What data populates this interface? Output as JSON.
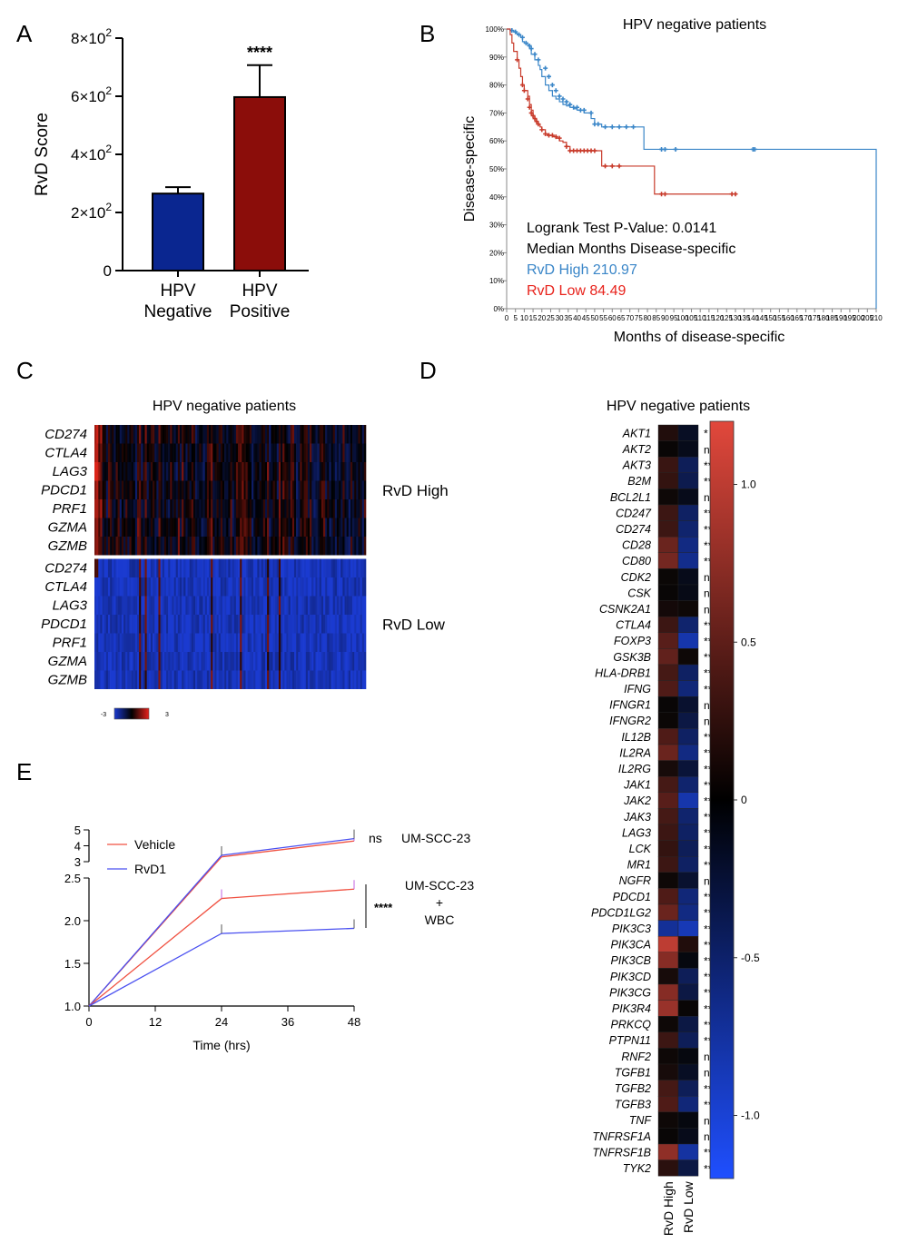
{
  "panel_labels": [
    "A",
    "B",
    "C",
    "D",
    "E"
  ],
  "chart_data": [
    {
      "id": "A",
      "type": "bar",
      "categories": [
        [
          "HPV",
          "Negative"
        ],
        [
          "HPV",
          "Positive"
        ]
      ],
      "values": [
        265,
        597
      ],
      "errors": [
        22,
        110
      ],
      "colors": [
        "#0a2690",
        "#8b0d0a"
      ],
      "ylabel": "RvD Score",
      "ylim": [
        0,
        800
      ],
      "yticks": [
        {
          "v": 0,
          "t": "0"
        },
        {
          "v": 200,
          "t": "2×10",
          "e": "2"
        },
        {
          "v": 400,
          "t": "4×10",
          "e": "2"
        },
        {
          "v": 600,
          "t": "6×10",
          "e": "2"
        },
        {
          "v": 800,
          "t": "8×10",
          "e": "2"
        }
      ],
      "annotation": "****"
    },
    {
      "id": "B",
      "type": "line",
      "title": "HPV negative patients",
      "xlabel": "Months of disease-specific",
      "ylabel": "Disease-specific",
      "xlim": [
        0,
        210
      ],
      "ylim": [
        0,
        100
      ],
      "xticks": [
        0,
        5,
        10,
        15,
        20,
        25,
        30,
        35,
        40,
        45,
        50,
        55,
        60,
        65,
        70,
        75,
        80,
        85,
        90,
        95,
        100,
        105,
        110,
        115,
        120,
        125,
        130,
        135,
        140,
        145,
        150,
        155,
        160,
        165,
        170,
        175,
        180,
        185,
        190,
        195,
        200,
        205,
        210
      ],
      "yticks": [
        {
          "v": 0,
          "t": "0%"
        },
        {
          "v": 10,
          "t": "10%"
        },
        {
          "v": 20,
          "t": "20%"
        },
        {
          "v": 30,
          "t": "30%"
        },
        {
          "v": 40,
          "t": "40%"
        },
        {
          "v": 50,
          "t": "50%"
        },
        {
          "v": 60,
          "t": "60%"
        },
        {
          "v": 70,
          "t": "70%"
        },
        {
          "v": 80,
          "t": "80%"
        },
        {
          "v": 90,
          "t": "90%"
        },
        {
          "v": 100,
          "t": "100%"
        }
      ],
      "series": [
        {
          "color": "#3a86c8",
          "x": [
            0,
            2,
            4,
            5,
            6,
            8,
            9,
            10,
            12,
            13,
            14,
            16,
            18,
            19,
            20,
            22,
            24,
            26,
            28,
            30,
            32,
            34,
            36,
            38,
            40,
            44,
            48,
            50,
            54,
            58,
            62,
            70,
            76,
            78,
            210,
            210
          ],
          "y": [
            100,
            99.5,
            99,
            98.5,
            98,
            97,
            95.5,
            95,
            94,
            93,
            91,
            89,
            87,
            85.5,
            83,
            80,
            78,
            76,
            75,
            74,
            73,
            72.5,
            72,
            71.5,
            71,
            70,
            68,
            66,
            65,
            65,
            65,
            65,
            65,
            57,
            57,
            0
          ],
          "censors": [
            [
              3,
              99.5
            ],
            [
              5,
              99
            ],
            [
              7,
              98
            ],
            [
              9,
              97
            ],
            [
              11,
              95
            ],
            [
              13,
              94
            ],
            [
              14,
              93
            ],
            [
              16,
              91
            ],
            [
              18,
              89
            ],
            [
              22,
              86
            ],
            [
              24,
              83
            ],
            [
              26,
              80
            ],
            [
              28,
              78
            ],
            [
              30,
              76
            ],
            [
              32,
              75
            ],
            [
              34,
              74
            ],
            [
              36,
              73
            ],
            [
              38,
              72
            ],
            [
              40,
              72
            ],
            [
              42,
              71
            ],
            [
              44,
              71
            ],
            [
              48,
              70
            ],
            [
              50,
              66
            ],
            [
              52,
              66
            ],
            [
              56,
              65
            ],
            [
              60,
              65
            ],
            [
              64,
              65
            ],
            [
              68,
              65
            ],
            [
              72,
              65
            ],
            [
              88,
              57
            ],
            [
              90,
              57
            ],
            [
              96,
              57
            ],
            [
              140,
              57
            ],
            [
              141,
              57
            ]
          ]
        },
        {
          "color": "#c83a2a",
          "x": [
            0,
            2,
            3,
            4,
            6,
            7,
            8,
            9,
            10,
            12,
            13,
            14,
            15,
            16,
            17,
            18,
            19,
            20,
            22,
            24,
            26,
            28,
            30,
            32,
            34,
            36,
            40,
            44,
            54,
            58,
            84,
            130
          ],
          "y": [
            100,
            98,
            95,
            92,
            89,
            86,
            83,
            80,
            78,
            76,
            73,
            71,
            69,
            68,
            67,
            66,
            65,
            64,
            62.5,
            62,
            61.5,
            61,
            60,
            59.5,
            58,
            56.5,
            56.5,
            56.5,
            51,
            51,
            41,
            41
          ],
          "censors": [
            [
              6,
              89
            ],
            [
              9,
              80
            ],
            [
              10,
              78
            ],
            [
              12,
              75
            ],
            [
              13,
              72
            ],
            [
              14,
              70
            ],
            [
              15,
              69
            ],
            [
              16,
              68
            ],
            [
              17,
              67
            ],
            [
              18,
              66
            ],
            [
              20,
              64
            ],
            [
              22,
              62.5
            ],
            [
              24,
              62
            ],
            [
              26,
              62
            ],
            [
              28,
              61.5
            ],
            [
              30,
              61
            ],
            [
              34,
              58
            ],
            [
              36,
              56.5
            ],
            [
              38,
              56.5
            ],
            [
              40,
              56.5
            ],
            [
              42,
              56.5
            ],
            [
              44,
              56.5
            ],
            [
              46,
              56.5
            ],
            [
              48,
              56.5
            ],
            [
              50,
              56.5
            ],
            [
              56,
              51
            ],
            [
              60,
              51
            ],
            [
              64,
              51
            ],
            [
              88,
              41
            ],
            [
              90,
              41
            ],
            [
              128,
              41
            ],
            [
              130,
              41
            ]
          ]
        }
      ],
      "legend": [
        {
          "text": "Logrank Test P-Value: 0.0141",
          "color": "#000000"
        },
        {
          "text": "Median Months Disease-specific",
          "color": "#000000"
        },
        {
          "text": "RvD High 210.97",
          "color": "#3a86c8"
        },
        {
          "text": "RvD Low 84.49",
          "color": "#e8231c"
        }
      ]
    },
    {
      "id": "C",
      "type": "heatmap",
      "title": "HPV negative patients",
      "rows_high": [
        "CD274",
        "CTLA4",
        "LAG3",
        "PDCD1",
        "PRF1",
        "GZMA",
        "GZMB"
      ],
      "rows_low": [
        "CD274",
        "CTLA4",
        "LAG3",
        "PDCD1",
        "PRF1",
        "GZMA",
        "GZMB"
      ],
      "group_labels": [
        "RvD High",
        "RvD Low"
      ],
      "colorbar": {
        "min": "-3",
        "max": "3",
        "colors": [
          "#1a3ad0",
          "#000000",
          "#e8231c"
        ]
      },
      "columns": 140
    },
    {
      "id": "D",
      "type": "heatmap",
      "title": "HPV negative patients",
      "columns": [
        "RvD High",
        "RvD Low"
      ],
      "genes": [
        "AKT1",
        "AKT2",
        "AKT3",
        "B2M",
        "BCL2L1",
        "CD247",
        "CD274",
        "CD28",
        "CD80",
        "CDK2",
        "CSK",
        "CSNK2A1",
        "CTLA4",
        "FOXP3",
        "GSK3B",
        "HLA-DRB1",
        "IFNG",
        "IFNGR1",
        "IFNGR2",
        "IL12B",
        "IL2RA",
        "IL2RG",
        "JAK1",
        "JAK2",
        "JAK3",
        "LAG3",
        "LCK",
        "MR1",
        "NGFR",
        "PDCD1",
        "PDCD1LG2",
        "PIK3C3",
        "PIK3CA",
        "PIK3CB",
        "PIK3CD",
        "PIK3CG",
        "PIK3R4",
        "PRKCQ",
        "PTPN11",
        "RNF2",
        "TGFB1",
        "TGFB2",
        "TGFB3",
        "TNF",
        "TNFRSF1A",
        "TNFRSF1B",
        "TYK2"
      ],
      "sig": [
        "*",
        "ns",
        "****",
        "****",
        "ns",
        "****",
        "****",
        "****",
        "****",
        "ns",
        "ns",
        "ns",
        "****",
        "****",
        "***",
        "****",
        "****",
        "ns",
        "ns",
        "****",
        "****",
        "***",
        "****",
        "****",
        "****",
        "****",
        "****",
        "****",
        "ns",
        "****",
        "****",
        "**",
        "****",
        "***",
        "***",
        "****",
        "****",
        "**",
        "***",
        "ns",
        "ns",
        "****",
        "****",
        "ns",
        "ns",
        "****",
        "***"
      ],
      "values_high": [
        0.15,
        0.02,
        0.28,
        0.25,
        0.05,
        0.3,
        0.3,
        0.55,
        0.6,
        0.03,
        0.02,
        0.08,
        0.3,
        0.45,
        0.5,
        0.35,
        0.4,
        0.02,
        0.03,
        0.4,
        0.55,
        0.1,
        0.35,
        0.45,
        0.35,
        0.3,
        0.25,
        0.3,
        0.05,
        0.4,
        0.55,
        -0.7,
        1.0,
        0.7,
        0.1,
        0.7,
        0.8,
        0.05,
        0.3,
        0.05,
        0.1,
        0.35,
        0.4,
        0.05,
        0.02,
        0.75,
        0.2
      ],
      "values_low": [
        -0.15,
        -0.1,
        -0.4,
        -0.35,
        -0.1,
        -0.45,
        -0.5,
        -0.6,
        -0.65,
        -0.1,
        -0.08,
        0.05,
        -0.5,
        -0.8,
        0.05,
        -0.45,
        -0.55,
        -0.2,
        -0.3,
        -0.45,
        -0.6,
        -0.25,
        -0.5,
        -0.8,
        -0.5,
        -0.45,
        -0.4,
        -0.45,
        -0.2,
        -0.55,
        -0.6,
        -0.85,
        0.15,
        -0.05,
        -0.4,
        -0.3,
        0.02,
        -0.3,
        -0.4,
        -0.05,
        -0.15,
        -0.4,
        -0.55,
        -0.05,
        -0.1,
        -0.75,
        -0.3
      ],
      "colorbar": {
        "min": -1.2,
        "max": 1.2,
        "ticks": [
          {
            "v": 1.0,
            "t": "1.0"
          },
          {
            "v": 0.5,
            "t": "0.5"
          },
          {
            "v": 0,
            "t": "0"
          },
          {
            "v": -0.5,
            "t": "-0.5"
          },
          {
            "v": -1.0,
            "t": "-1.0"
          }
        ]
      }
    },
    {
      "id": "E",
      "type": "line",
      "xlabel": "Time (hrs)",
      "xticks": [
        0,
        12,
        24,
        36,
        48
      ],
      "yticks_lower": [
        {
          "v": 1.0,
          "t": "1.0"
        },
        {
          "v": 1.5,
          "t": "1.5"
        },
        {
          "v": 2.0,
          "t": "2.0"
        },
        {
          "v": 2.5,
          "t": "2.5"
        }
      ],
      "yticks_upper": [
        {
          "v": 3,
          "t": "3"
        },
        {
          "v": 4,
          "t": "4"
        },
        {
          "v": 5,
          "t": "5"
        }
      ],
      "legend": [
        {
          "name": "Vehicle",
          "color": "#f05040"
        },
        {
          "name": "RvD1",
          "color": "#4a50f0"
        }
      ],
      "series": [
        {
          "name": "Vehicle upper",
          "color": "#f05040",
          "x": [
            0,
            24,
            48
          ],
          "y": [
            1.0,
            3.3,
            4.3
          ]
        },
        {
          "name": "RvD1 upper",
          "color": "#4a50f0",
          "x": [
            0,
            24,
            48
          ],
          "y": [
            1.0,
            3.4,
            4.45
          ]
        },
        {
          "name": "Vehicle lower",
          "color": "#f05040",
          "x": [
            0,
            24,
            48
          ],
          "y": [
            1.0,
            2.26,
            2.37
          ]
        },
        {
          "name": "RvD1 lower",
          "color": "#4a50f0",
          "x": [
            0,
            24,
            48
          ],
          "y": [
            1.0,
            1.85,
            1.91
          ]
        }
      ],
      "annotations": {
        "ns": "ns",
        "upper_label": "UM-SCC-23",
        "lower_label": [
          "UM-SCC-23",
          "+",
          "WBC"
        ],
        "stars": "****"
      }
    }
  ]
}
